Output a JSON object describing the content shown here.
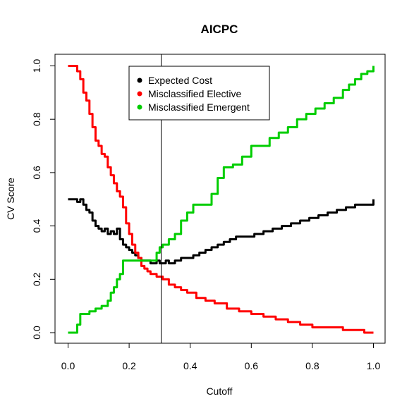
{
  "chart_data": {
    "type": "line",
    "title": "AICPC",
    "xlabel": "Cutoff",
    "ylabel": "CV Score",
    "xlim": [
      0,
      1
    ],
    "ylim": [
      0,
      1
    ],
    "xticks": [
      "0.0",
      "0.2",
      "0.4",
      "0.6",
      "0.8",
      "1.0"
    ],
    "yticks": [
      "0.0",
      "0.2",
      "0.4",
      "0.6",
      "0.8",
      "1.0"
    ],
    "grid": false,
    "legend": "top-center",
    "vline": 0.305,
    "series": [
      {
        "name": "Expected Cost",
        "color": "#000000",
        "x": [
          0.0,
          0.02,
          0.03,
          0.04,
          0.05,
          0.06,
          0.07,
          0.08,
          0.09,
          0.1,
          0.11,
          0.12,
          0.13,
          0.14,
          0.15,
          0.16,
          0.17,
          0.18,
          0.19,
          0.2,
          0.21,
          0.22,
          0.23,
          0.24,
          0.25,
          0.26,
          0.27,
          0.28,
          0.29,
          0.3,
          0.31,
          0.32,
          0.33,
          0.35,
          0.37,
          0.39,
          0.41,
          0.43,
          0.45,
          0.47,
          0.49,
          0.51,
          0.53,
          0.55,
          0.58,
          0.61,
          0.64,
          0.67,
          0.7,
          0.73,
          0.76,
          0.79,
          0.82,
          0.85,
          0.88,
          0.91,
          0.94,
          0.97,
          1.0
        ],
        "values": [
          0.5,
          0.5,
          0.49,
          0.5,
          0.48,
          0.46,
          0.45,
          0.42,
          0.4,
          0.39,
          0.38,
          0.39,
          0.37,
          0.38,
          0.37,
          0.39,
          0.35,
          0.33,
          0.32,
          0.31,
          0.3,
          0.29,
          0.28,
          0.27,
          0.27,
          0.27,
          0.26,
          0.26,
          0.27,
          0.26,
          0.26,
          0.27,
          0.26,
          0.27,
          0.28,
          0.28,
          0.29,
          0.3,
          0.31,
          0.32,
          0.33,
          0.34,
          0.35,
          0.36,
          0.36,
          0.37,
          0.38,
          0.39,
          0.4,
          0.41,
          0.42,
          0.43,
          0.44,
          0.45,
          0.46,
          0.47,
          0.48,
          0.48,
          0.5
        ]
      },
      {
        "name": "Misclassified Elective",
        "color": "#ff0000",
        "x": [
          0.0,
          0.02,
          0.03,
          0.04,
          0.05,
          0.06,
          0.07,
          0.08,
          0.09,
          0.1,
          0.11,
          0.12,
          0.13,
          0.14,
          0.15,
          0.16,
          0.17,
          0.18,
          0.19,
          0.2,
          0.21,
          0.22,
          0.23,
          0.24,
          0.25,
          0.26,
          0.27,
          0.28,
          0.29,
          0.3,
          0.31,
          0.33,
          0.35,
          0.37,
          0.39,
          0.42,
          0.45,
          0.48,
          0.52,
          0.56,
          0.6,
          0.64,
          0.68,
          0.72,
          0.76,
          0.8,
          0.85,
          0.9,
          0.94,
          0.97,
          1.0
        ],
        "values": [
          1.0,
          1.0,
          0.98,
          0.95,
          0.9,
          0.87,
          0.82,
          0.77,
          0.72,
          0.7,
          0.67,
          0.66,
          0.62,
          0.59,
          0.56,
          0.53,
          0.51,
          0.47,
          0.41,
          0.37,
          0.33,
          0.3,
          0.28,
          0.25,
          0.24,
          0.23,
          0.22,
          0.22,
          0.21,
          0.21,
          0.2,
          0.18,
          0.17,
          0.16,
          0.15,
          0.13,
          0.12,
          0.11,
          0.09,
          0.08,
          0.07,
          0.06,
          0.05,
          0.04,
          0.03,
          0.02,
          0.02,
          0.01,
          0.01,
          0.0,
          0.0
        ]
      },
      {
        "name": "Misclassified Emergent",
        "color": "#00cd00",
        "x": [
          0.0,
          0.02,
          0.03,
          0.04,
          0.05,
          0.07,
          0.09,
          0.11,
          0.13,
          0.14,
          0.15,
          0.16,
          0.17,
          0.18,
          0.2,
          0.22,
          0.24,
          0.26,
          0.28,
          0.29,
          0.3,
          0.31,
          0.33,
          0.35,
          0.37,
          0.39,
          0.41,
          0.45,
          0.47,
          0.49,
          0.51,
          0.54,
          0.57,
          0.6,
          0.63,
          0.66,
          0.69,
          0.72,
          0.75,
          0.78,
          0.81,
          0.84,
          0.87,
          0.9,
          0.92,
          0.94,
          0.96,
          0.98,
          1.0
        ],
        "values": [
          0.0,
          0.0,
          0.03,
          0.07,
          0.07,
          0.08,
          0.09,
          0.1,
          0.12,
          0.15,
          0.17,
          0.2,
          0.22,
          0.27,
          0.27,
          0.27,
          0.27,
          0.27,
          0.27,
          0.3,
          0.32,
          0.33,
          0.35,
          0.37,
          0.42,
          0.45,
          0.48,
          0.48,
          0.52,
          0.58,
          0.62,
          0.63,
          0.66,
          0.7,
          0.7,
          0.73,
          0.75,
          0.77,
          0.8,
          0.82,
          0.84,
          0.86,
          0.88,
          0.91,
          0.93,
          0.95,
          0.97,
          0.98,
          1.0
        ]
      }
    ]
  }
}
